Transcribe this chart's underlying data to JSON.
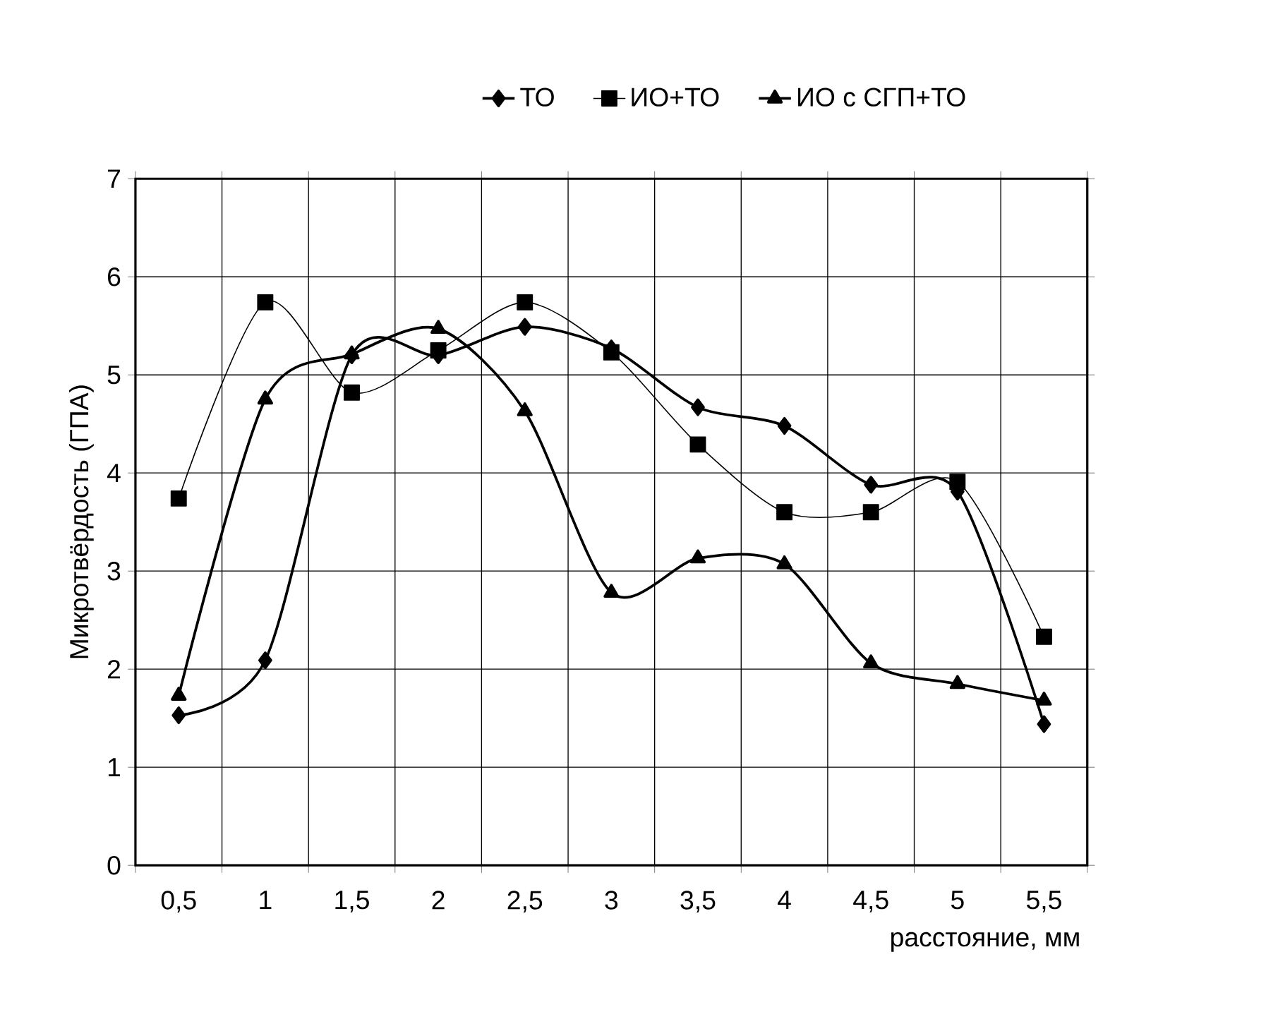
{
  "chart_data": {
    "type": "line",
    "xlabel": "расстояние, мм",
    "ylabel": "Микротвёрдость (ГПА)",
    "categories": [
      "0,5",
      "1",
      "1,5",
      "2",
      "2,5",
      "3",
      "3,5",
      "4",
      "4,5",
      "5",
      "5,5"
    ],
    "series": [
      {
        "name": "ТО",
        "color": "#000000",
        "marker": "diamond",
        "values": [
          1.53,
          2.09,
          5.2,
          5.2,
          5.49,
          5.27,
          4.67,
          4.48,
          3.88,
          3.81,
          1.44
        ]
      },
      {
        "name": "ИО+ТО",
        "color": "#000000",
        "marker": "square",
        "values": [
          3.74,
          5.74,
          4.82,
          5.25,
          5.74,
          5.23,
          4.29,
          3.6,
          3.6,
          3.91,
          2.33
        ]
      },
      {
        "name": "ИО с СГП+ТО",
        "color": "#000000",
        "marker": "triangle",
        "values": [
          1.73,
          4.75,
          5.21,
          5.47,
          4.63,
          2.78,
          3.13,
          3.07,
          2.06,
          1.85,
          1.68
        ]
      }
    ],
    "ylim": [
      0,
      7
    ],
    "yticks": [
      0,
      1,
      2,
      3,
      4,
      5,
      6,
      7
    ],
    "grid": true,
    "legend": "top",
    "line_style": "solid"
  }
}
